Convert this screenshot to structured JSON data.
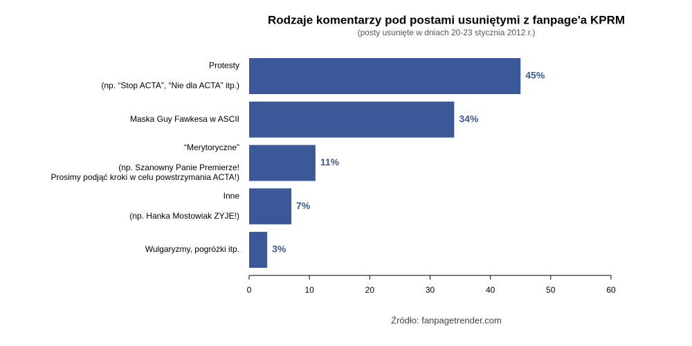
{
  "chart_data": {
    "type": "bar",
    "orientation": "horizontal",
    "title": "Rodzaje komentarzy pod postami usuniętymi z fanpage'a KPRM",
    "subtitle": "(posty usunięte w dniach 20-23 stycznia 2012 r.)",
    "source": "Źródło: fanpagetrender.com",
    "categories": [
      [
        "Protesty",
        "(np. “Stop ACTA”, “Nie dla ACTA” itp.)"
      ],
      [
        "Maska Guy Fawkesa w ASCII"
      ],
      [
        "“Merytoryczne”",
        "(np. Szanowny Panie Premierze!",
        "Prosimy podjąć kroki w celu powstrzymania ACTA!)"
      ],
      [
        "Inne",
        "(np. Hanka Mostowiak ZYJE!)"
      ],
      [
        "Wulgaryzmy, pogróżki itp."
      ]
    ],
    "values": [
      45,
      34,
      11,
      7,
      3
    ],
    "value_labels": [
      "45%",
      "34%",
      "11%",
      "7%",
      "3%"
    ],
    "color": "#3b5998",
    "xlim": [
      0,
      60
    ],
    "xticks": [
      0,
      10,
      20,
      30,
      40,
      50,
      60
    ]
  }
}
